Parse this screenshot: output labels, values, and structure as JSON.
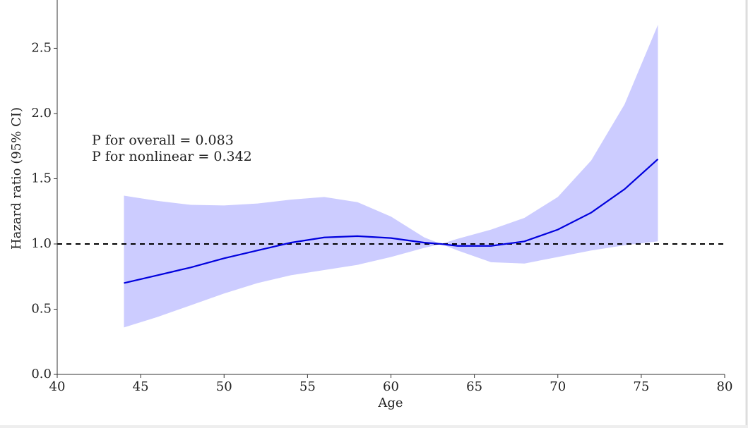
{
  "chart_data": {
    "type": "line",
    "xlabel": "Age",
    "ylabel": "Hazard ratio (95% CI)",
    "annotations": [
      "P for overall = 0.083",
      "P for nonlinear = 0.342"
    ],
    "x": [
      44,
      46,
      48,
      50,
      52,
      54,
      56,
      58,
      60,
      62,
      63,
      64,
      66,
      68,
      70,
      72,
      74,
      76
    ],
    "series": [
      {
        "color": "#0000dd",
        "band_color": "#ccccff",
        "values": [
          0.7,
          0.76,
          0.82,
          0.89,
          0.95,
          1.01,
          1.05,
          1.06,
          1.045,
          1.01,
          1.0,
          0.985,
          0.985,
          1.02,
          1.11,
          1.24,
          1.42,
          1.65
        ],
        "upper": [
          1.37,
          1.33,
          1.3,
          1.295,
          1.31,
          1.34,
          1.36,
          1.32,
          1.21,
          1.05,
          1.0,
          1.04,
          1.11,
          1.2,
          1.36,
          1.64,
          2.07,
          2.68
        ],
        "lower": [
          0.36,
          0.44,
          0.53,
          0.62,
          0.7,
          0.76,
          0.8,
          0.84,
          0.9,
          0.97,
          1.0,
          0.95,
          0.86,
          0.85,
          0.9,
          0.95,
          0.99,
          1.02
        ]
      }
    ],
    "reference_line": 1,
    "xlim": [
      40,
      80
    ],
    "xticks": [
      40,
      45,
      50,
      55,
      60,
      65,
      70,
      75,
      80
    ],
    "ylim": [
      0,
      2.87
    ],
    "yticks": [
      {
        "value": 0,
        "label": "0.0"
      },
      0.5,
      {
        "value": 1,
        "label": "1.0"
      },
      1.5,
      {
        "value": 2,
        "label": "2.0"
      },
      2.5
    ]
  }
}
